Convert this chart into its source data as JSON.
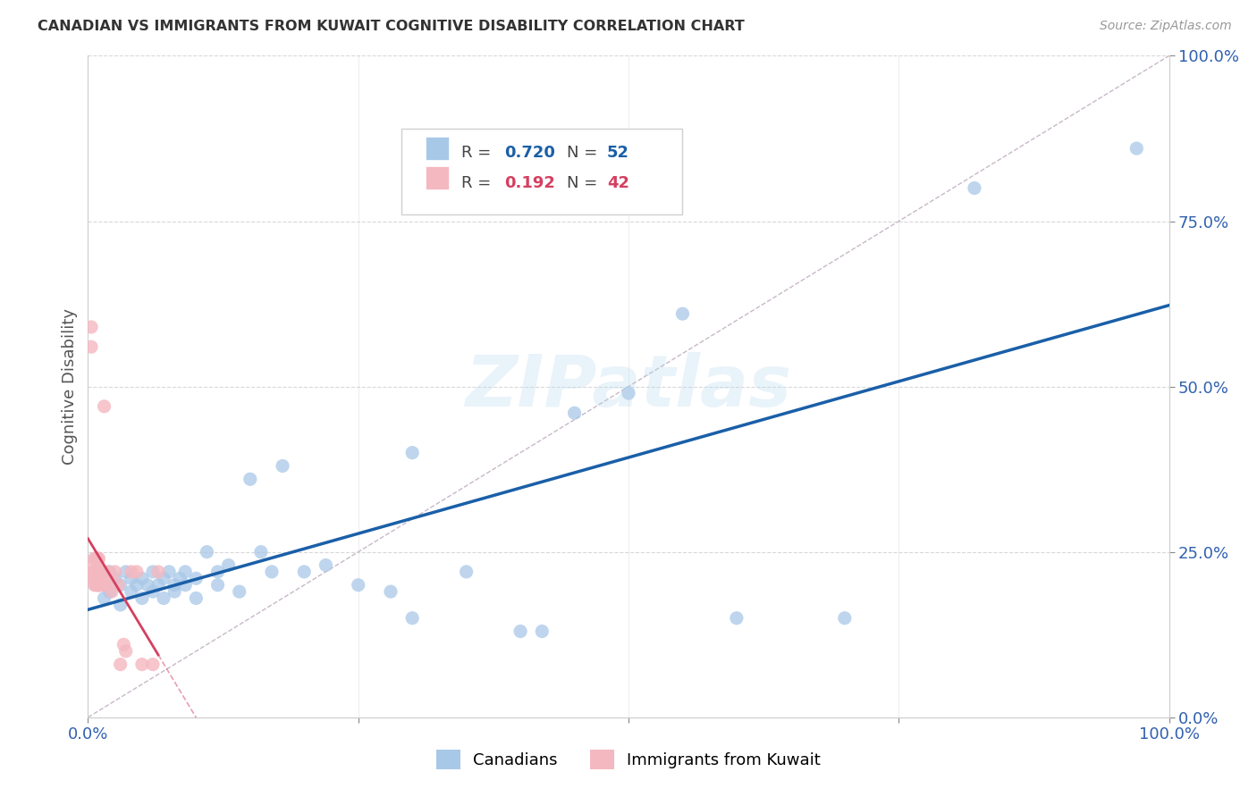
{
  "title": "CANADIAN VS IMMIGRANTS FROM KUWAIT COGNITIVE DISABILITY CORRELATION CHART",
  "source": "Source: ZipAtlas.com",
  "ylabel": "Cognitive Disability",
  "watermark": "ZIPatlas",
  "legend1_R": "0.720",
  "legend1_N": "52",
  "legend2_R": "0.192",
  "legend2_N": "42",
  "canadian_color": "#a8c8e8",
  "kuwait_color": "#f4b8c0",
  "canadian_line_color": "#1a5fa8",
  "kuwait_line_color": "#d44060",
  "diagonal_color": "#c8b8c8",
  "grid_color": "#d8d8d8",
  "canadians_x": [
    0.01,
    0.015,
    0.02,
    0.02,
    0.025,
    0.03,
    0.03,
    0.035,
    0.04,
    0.04,
    0.045,
    0.05,
    0.05,
    0.055,
    0.06,
    0.06,
    0.065,
    0.07,
    0.07,
    0.075,
    0.08,
    0.08,
    0.085,
    0.09,
    0.09,
    0.1,
    0.1,
    0.11,
    0.12,
    0.12,
    0.13,
    0.14,
    0.15,
    0.16,
    0.17,
    0.18,
    0.2,
    0.22,
    0.25,
    0.28,
    0.3,
    0.3,
    0.35,
    0.4,
    0.42,
    0.45,
    0.5,
    0.55,
    0.6,
    0.7,
    0.82,
    0.97
  ],
  "canadians_y": [
    0.2,
    0.18,
    0.22,
    0.19,
    0.21,
    0.2,
    0.17,
    0.22,
    0.19,
    0.21,
    0.2,
    0.18,
    0.21,
    0.2,
    0.22,
    0.19,
    0.2,
    0.21,
    0.18,
    0.22,
    0.2,
    0.19,
    0.21,
    0.22,
    0.2,
    0.21,
    0.18,
    0.25,
    0.22,
    0.2,
    0.23,
    0.19,
    0.36,
    0.25,
    0.22,
    0.38,
    0.22,
    0.23,
    0.2,
    0.19,
    0.4,
    0.15,
    0.22,
    0.13,
    0.13,
    0.46,
    0.49,
    0.61,
    0.15,
    0.15,
    0.8,
    0.86
  ],
  "kuwait_x": [
    0.003,
    0.003,
    0.004,
    0.005,
    0.005,
    0.005,
    0.006,
    0.006,
    0.006,
    0.007,
    0.007,
    0.007,
    0.008,
    0.008,
    0.008,
    0.009,
    0.009,
    0.009,
    0.01,
    0.01,
    0.01,
    0.011,
    0.011,
    0.012,
    0.012,
    0.013,
    0.014,
    0.015,
    0.016,
    0.018,
    0.02,
    0.022,
    0.025,
    0.028,
    0.03,
    0.033,
    0.035,
    0.04,
    0.045,
    0.05,
    0.06,
    0.065
  ],
  "kuwait_y": [
    0.56,
    0.59,
    0.21,
    0.21,
    0.22,
    0.23,
    0.2,
    0.22,
    0.24,
    0.2,
    0.22,
    0.24,
    0.2,
    0.22,
    0.24,
    0.2,
    0.22,
    0.24,
    0.2,
    0.22,
    0.24,
    0.2,
    0.22,
    0.2,
    0.22,
    0.22,
    0.2,
    0.47,
    0.2,
    0.22,
    0.21,
    0.19,
    0.22,
    0.2,
    0.08,
    0.11,
    0.1,
    0.22,
    0.22,
    0.08,
    0.08,
    0.22
  ],
  "background_color": "#ffffff",
  "title_color": "#333333",
  "axis_label_color": "#555555",
  "tick_color": "#3060b0",
  "ytick_values": [
    0.0,
    0.25,
    0.5,
    0.75,
    1.0
  ],
  "ytick_labels": [
    "0.0%",
    "25.0%",
    "50.0%",
    "75.0%",
    "100.0%"
  ],
  "xlim": [
    0.0,
    1.0
  ],
  "ylim": [
    0.0,
    1.0
  ],
  "figsize": [
    14.06,
    8.92
  ],
  "dpi": 100
}
